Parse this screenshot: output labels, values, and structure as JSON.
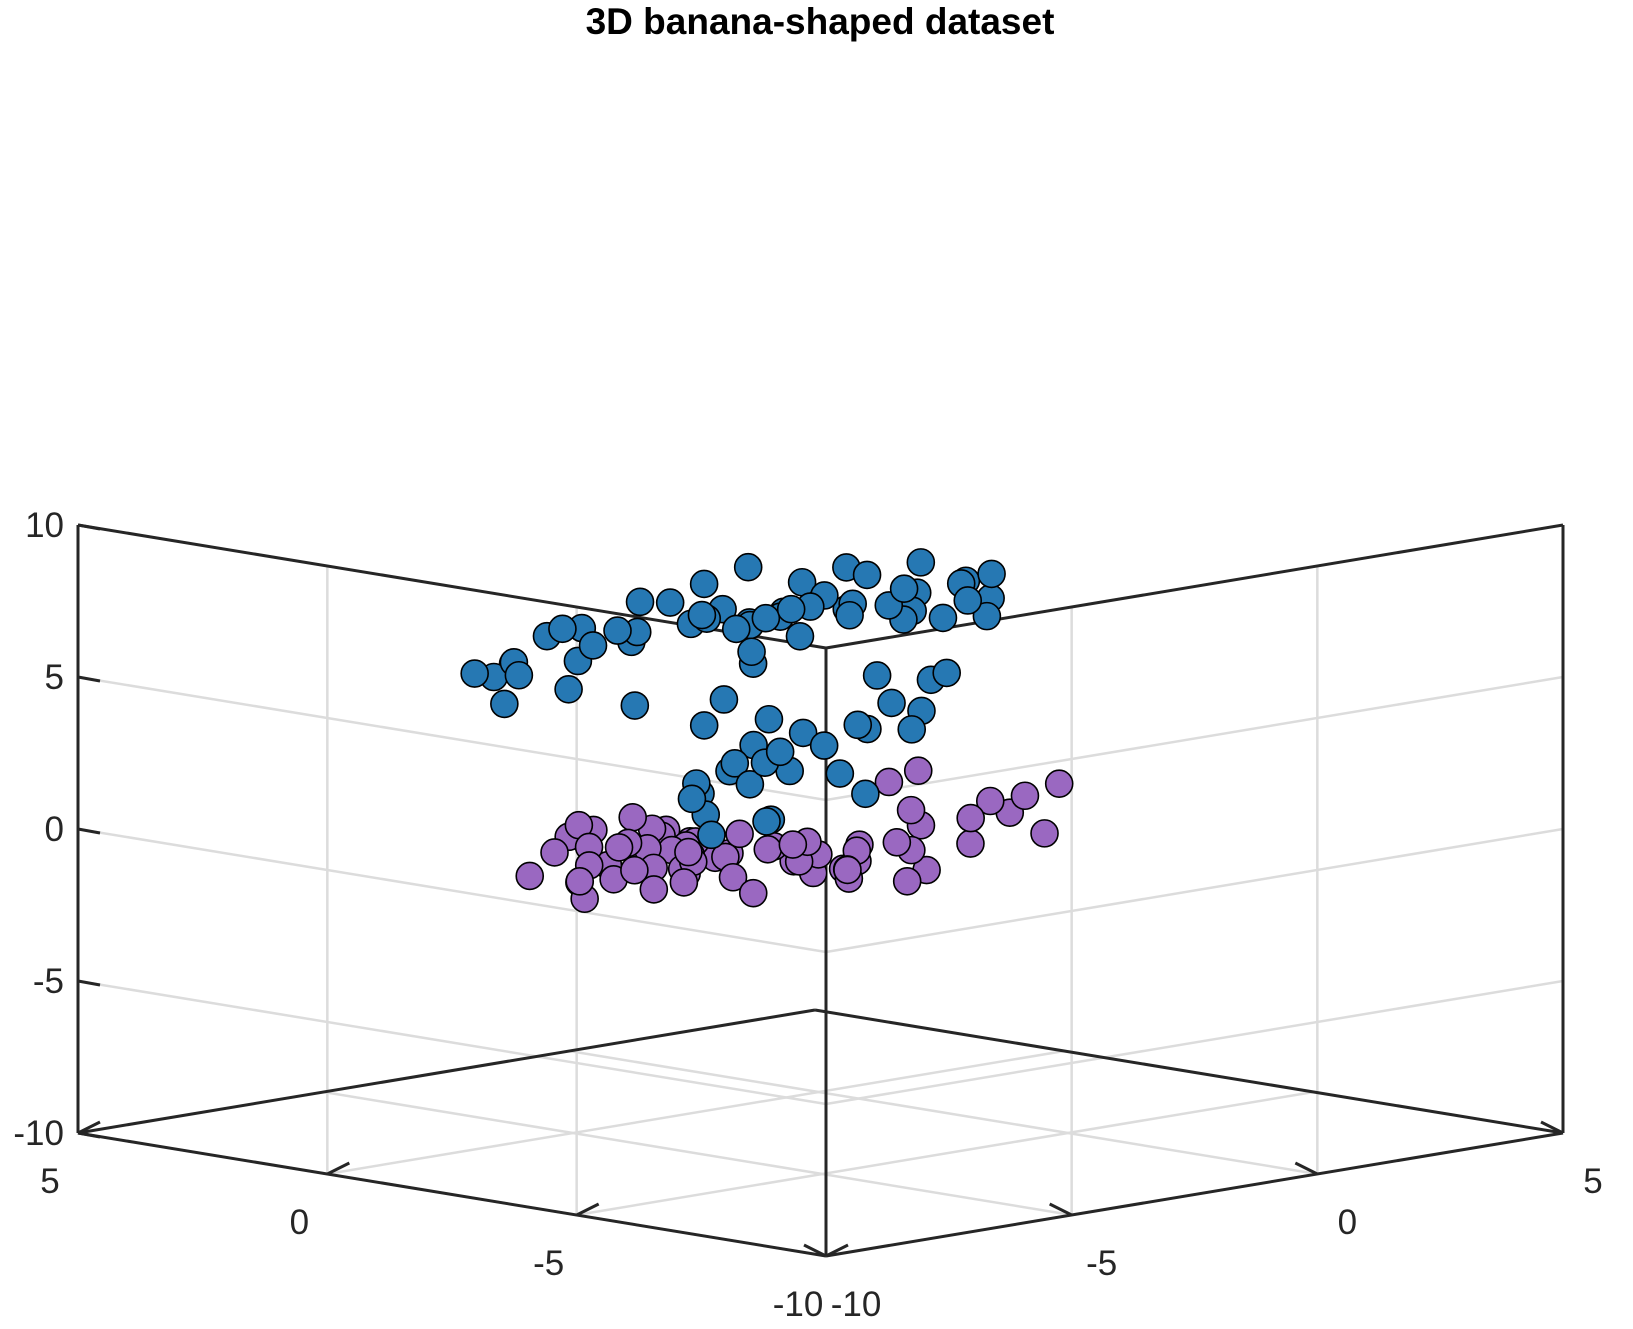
{
  "chart_data": {
    "type": "scatter",
    "title": "3D banana-shaped dataset",
    "xlabel": "",
    "ylabel": "",
    "zlabel": "",
    "xlim": [
      -10,
      5
    ],
    "ylim": [
      -10,
      5
    ],
    "zlim": [
      -10,
      10
    ],
    "xticks": [
      "-10",
      "-5",
      "0",
      "5"
    ],
    "yticks": [
      "-10",
      "-5",
      "0",
      "5"
    ],
    "zticks": [
      "-10",
      "-5",
      "0",
      "5",
      "10"
    ],
    "grid": true,
    "view": "3D isometric",
    "colors": {
      "series1": "#2678b3",
      "series2": "#9a68c1",
      "edge": "#000000"
    },
    "series": [
      {
        "color": "#2678b3",
        "points": [
          [
            -6.6,
            -0.2,
            4.6
          ],
          [
            -6.0,
            0.2,
            5.7
          ],
          [
            -5.8,
            -0.7,
            5.0
          ],
          [
            -6.9,
            0.1,
            5.6
          ],
          [
            -5.1,
            -0.5,
            6.2
          ],
          [
            -4.5,
            -0.4,
            6.5
          ],
          [
            -4.0,
            -1.6,
            7.2
          ],
          [
            -3.2,
            -1.5,
            6.5
          ],
          [
            -2.8,
            -1.7,
            6.8
          ],
          [
            -2.2,
            -2.0,
            7.1
          ],
          [
            -1.4,
            -2.0,
            6.6
          ],
          [
            -0.9,
            -2.6,
            7.5
          ],
          [
            -0.4,
            -1.8,
            6.6
          ],
          [
            0.5,
            -2.0,
            6.0
          ],
          [
            0.7,
            -2.3,
            6.6
          ],
          [
            1.8,
            -1.6,
            5.6
          ],
          [
            2.2,
            -1.3,
            6.8
          ],
          [
            2.8,
            -0.1,
            6.0
          ],
          [
            3.5,
            0.0,
            5.3
          ],
          [
            3.2,
            0.2,
            5.9
          ],
          [
            3.5,
            1.4,
            6.1
          ],
          [
            3.0,
            2.4,
            5.8
          ],
          [
            2.2,
            2.5,
            5.5
          ],
          [
            1.8,
            3.7,
            4.4
          ],
          [
            0.9,
            2.3,
            6.4
          ],
          [
            -0.2,
            2.1,
            6.2
          ],
          [
            -1.2,
            2.4,
            5.8
          ],
          [
            -1.5,
            1.5,
            6.1
          ],
          [
            -3.5,
            2.0,
            5.4
          ],
          [
            -4.2,
            1.0,
            6.1
          ],
          [
            -3.4,
            1.4,
            5.8
          ],
          [
            -4.8,
            1.4,
            5.0
          ],
          [
            -4.9,
            0.0,
            5.5
          ],
          [
            -5.8,
            0.8,
            5.0
          ],
          [
            -6.0,
            0.1,
            5.3
          ],
          [
            -2.0,
            -1.2,
            6.5
          ],
          [
            -1.0,
            -1.1,
            6.9
          ],
          [
            0.0,
            -1.7,
            6.0
          ],
          [
            1.0,
            -0.9,
            5.8
          ],
          [
            1.6,
            -0.4,
            6.1
          ],
          [
            -3.0,
            0.8,
            5.4
          ],
          [
            -3.8,
            -1.5,
            7.0
          ],
          [
            -1.7,
            -0.3,
            5.9
          ],
          [
            -2.6,
            0.0,
            6.1
          ],
          [
            -0.8,
            0.6,
            5.5
          ],
          [
            0.2,
            0.9,
            5.5
          ],
          [
            1.2,
            0.5,
            5.6
          ],
          [
            2.0,
            1.0,
            6.2
          ],
          [
            2.5,
            1.9,
            4.7
          ],
          [
            3.0,
            1.3,
            4.9
          ],
          [
            -1.7,
            -2.1,
            1.5
          ],
          [
            -1.9,
            -1.1,
            2.0
          ],
          [
            -1.6,
            -0.5,
            1.4
          ],
          [
            -1.4,
            0.0,
            0.5
          ],
          [
            -1.3,
            -0.7,
            1.1
          ],
          [
            -1.2,
            0.5,
            1.0
          ],
          [
            -0.8,
            1.0,
            0.5
          ],
          [
            -0.3,
            2.0,
            1.6
          ],
          [
            0.3,
            1.6,
            0.9
          ],
          [
            0.8,
            1.1,
            1.3
          ],
          [
            1.1,
            0.3,
            1.7
          ],
          [
            1.5,
            0.5,
            1.4
          ],
          [
            2.3,
            0.4,
            1.2
          ],
          [
            2.6,
            0.5,
            1.7
          ],
          [
            -2.8,
            -1.8,
            0.2
          ],
          [
            -3.4,
            -1.2,
            -0.3
          ],
          [
            -2.4,
            -0.1,
            -0.2
          ],
          [
            -2.1,
            0.3,
            0.3
          ],
          [
            -3.2,
            -0.7,
            1.2
          ],
          [
            -0.9,
            2.8,
            2.2
          ],
          [
            1.0,
            2.3,
            3.2
          ],
          [
            0.0,
            1.9,
            2.4
          ],
          [
            2.6,
            1.1,
            1.8
          ],
          [
            -0.2,
            0.8,
            2.1
          ],
          [
            3.3,
            1.0,
            2.4
          ],
          [
            -4.0,
            -1.4,
            1.1
          ],
          [
            -3.7,
            -2.6,
            0.6
          ],
          [
            -2.5,
            -3.4,
            1.4
          ],
          [
            -0.7,
            -0.8,
            1.8
          ],
          [
            1.9,
            0.7,
            3.0
          ],
          [
            2.2,
            -0.4,
            3.3
          ],
          [
            -1.7,
            -1.3,
            5.8
          ],
          [
            -3.7,
            -2.3,
            6.1
          ],
          [
            -3.3,
            -2.7,
            7.5
          ],
          [
            -4.2,
            -0.5,
            6.4
          ]
        ]
      },
      {
        "color": "#9a68c1",
        "points": [
          [
            -2.0,
            -6.5,
            0.8
          ],
          [
            -3.0,
            -6.0,
            0.6
          ],
          [
            -4.0,
            -5.8,
            0.6
          ],
          [
            -4.9,
            -5.4,
            0.1
          ],
          [
            -5.4,
            -4.3,
            0.6
          ],
          [
            -5.8,
            -3.2,
            0.0
          ],
          [
            -6.2,
            -2.8,
            -0.2
          ],
          [
            -6.7,
            -2.0,
            -0.2
          ],
          [
            -7.0,
            -1.6,
            0.2
          ],
          [
            -6.2,
            -1.3,
            0.8
          ],
          [
            -5.6,
            -1.0,
            0.4
          ],
          [
            -4.8,
            -1.0,
            0.6
          ],
          [
            -4.0,
            -0.6,
            -0.1
          ],
          [
            -3.4,
            -0.2,
            -0.6
          ],
          [
            -2.8,
            0.3,
            -0.7
          ],
          [
            -2.1,
            0.4,
            -1.3
          ],
          [
            -1.4,
            1.2,
            -1.7
          ],
          [
            -0.8,
            1.0,
            -2.2
          ],
          [
            0.1,
            0.6,
            -2.6
          ],
          [
            0.7,
            0.8,
            -3.2
          ],
          [
            1.5,
            0.7,
            -3.0
          ],
          [
            -2.2,
            -6.0,
            1.4
          ],
          [
            -3.5,
            -5.5,
            1.2
          ],
          [
            -4.4,
            -5.1,
            0.5
          ],
          [
            -5.1,
            -4.8,
            0.9
          ],
          [
            -5.6,
            -3.8,
            -0.4
          ],
          [
            -6.0,
            -3.3,
            0.4
          ],
          [
            -6.6,
            -2.5,
            0.5
          ],
          [
            -6.9,
            -2.0,
            -0.7
          ],
          [
            -6.5,
            -1.8,
            0.3
          ],
          [
            -5.9,
            -0.8,
            0.2
          ],
          [
            -5.3,
            -1.4,
            0.0
          ],
          [
            -4.5,
            -1.0,
            -0.5
          ],
          [
            -3.8,
            -0.8,
            -0.8
          ],
          [
            -3.0,
            -0.3,
            -1.0
          ],
          [
            -2.4,
            0.2,
            -1.6
          ],
          [
            -1.6,
            0.5,
            -2.0
          ],
          [
            -1.0,
            0.6,
            -1.4
          ],
          [
            -0.3,
            0.6,
            -2.0
          ],
          [
            0.4,
            0.4,
            -2.4
          ],
          [
            -1.6,
            -6.4,
            2.3
          ],
          [
            -2.8,
            -6.2,
            2.0
          ],
          [
            -3.6,
            -5.4,
            1.7
          ],
          [
            -5.6,
            -5.0,
            1.0
          ],
          [
            -6.4,
            -3.0,
            -0.8
          ],
          [
            -7.3,
            -2.5,
            -1.0
          ],
          [
            -7.2,
            -1.3,
            -0.6
          ],
          [
            -5.0,
            -0.7,
            -1.0
          ],
          [
            -3.2,
            0.3,
            -1.3
          ],
          [
            -1.3,
            1.4,
            -2.7
          ],
          [
            -2.5,
            -6.6,
            2.2
          ],
          [
            -3.3,
            -6.3,
            1.6
          ],
          [
            -4.6,
            -6.1,
            1.1
          ],
          [
            -5.3,
            -5.8,
            0.3
          ],
          [
            -6.0,
            -4.6,
            -0.6
          ],
          [
            -6.6,
            -3.8,
            -0.3
          ],
          [
            -7.1,
            -3.3,
            0.1
          ],
          [
            -7.4,
            -2.5,
            -0.4
          ],
          [
            -6.0,
            -1.8,
            -0.9
          ],
          [
            -4.3,
            -1.5,
            -1.1
          ],
          [
            -3.6,
            -0.9,
            -1.6
          ],
          [
            -2.0,
            -0.1,
            -1.7
          ],
          [
            -0.6,
            -0.2,
            -2.2
          ],
          [
            0.7,
            0.2,
            -2.9
          ],
          [
            1.7,
            -0.1,
            -3.5
          ],
          [
            2.4,
            0.2,
            -3.4
          ],
          [
            -0.4,
            -1.0,
            -2.6
          ],
          [
            -1.2,
            -2.0,
            -1.0
          ],
          [
            -0.6,
            -2.0,
            0.9
          ],
          [
            0.2,
            -1.8,
            1.0
          ]
        ]
      }
    ]
  }
}
